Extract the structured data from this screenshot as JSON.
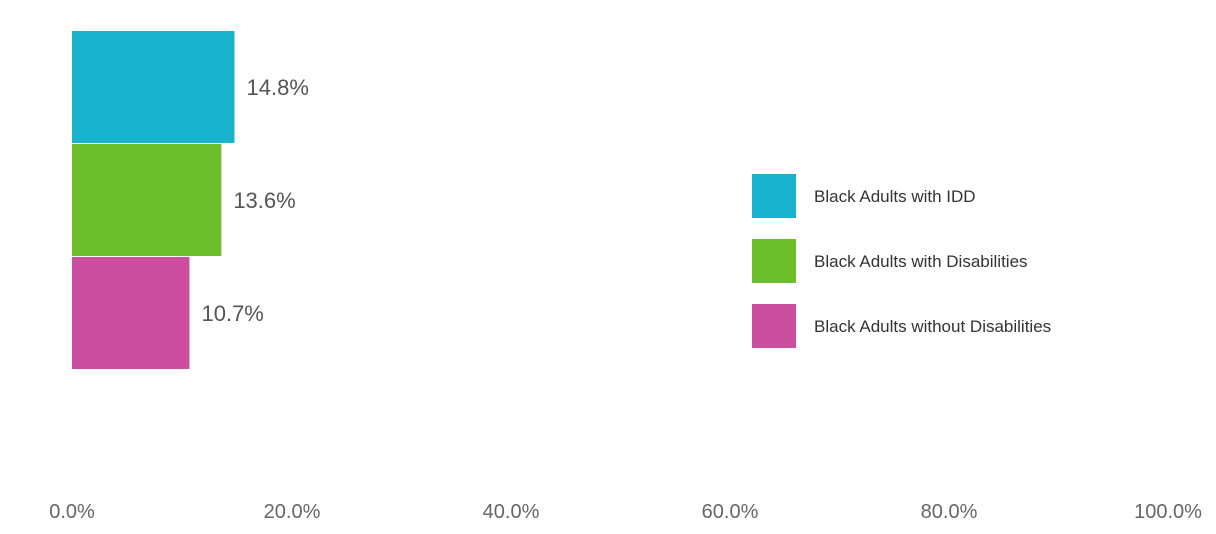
{
  "chart_data": {
    "type": "bar",
    "orientation": "horizontal",
    "series": [
      {
        "name": "Black Adults with IDD",
        "value": 14.8,
        "label": "14.8%",
        "color": "#18b2cc"
      },
      {
        "name": "Black Adults with Disabilities",
        "value": 13.6,
        "label": "13.6%",
        "color": "#6cbf2a"
      },
      {
        "name": "Black Adults without Disabilities",
        "value": 10.7,
        "label": "10.7%",
        "color": "#cc4f9f"
      }
    ],
    "x_ticks": [
      "0.0%",
      "20.0%",
      "40.0%",
      "60.0%",
      "80.0%",
      "100.0%"
    ],
    "xlim": [
      0,
      100
    ],
    "grid": false,
    "legend_position": "right"
  }
}
